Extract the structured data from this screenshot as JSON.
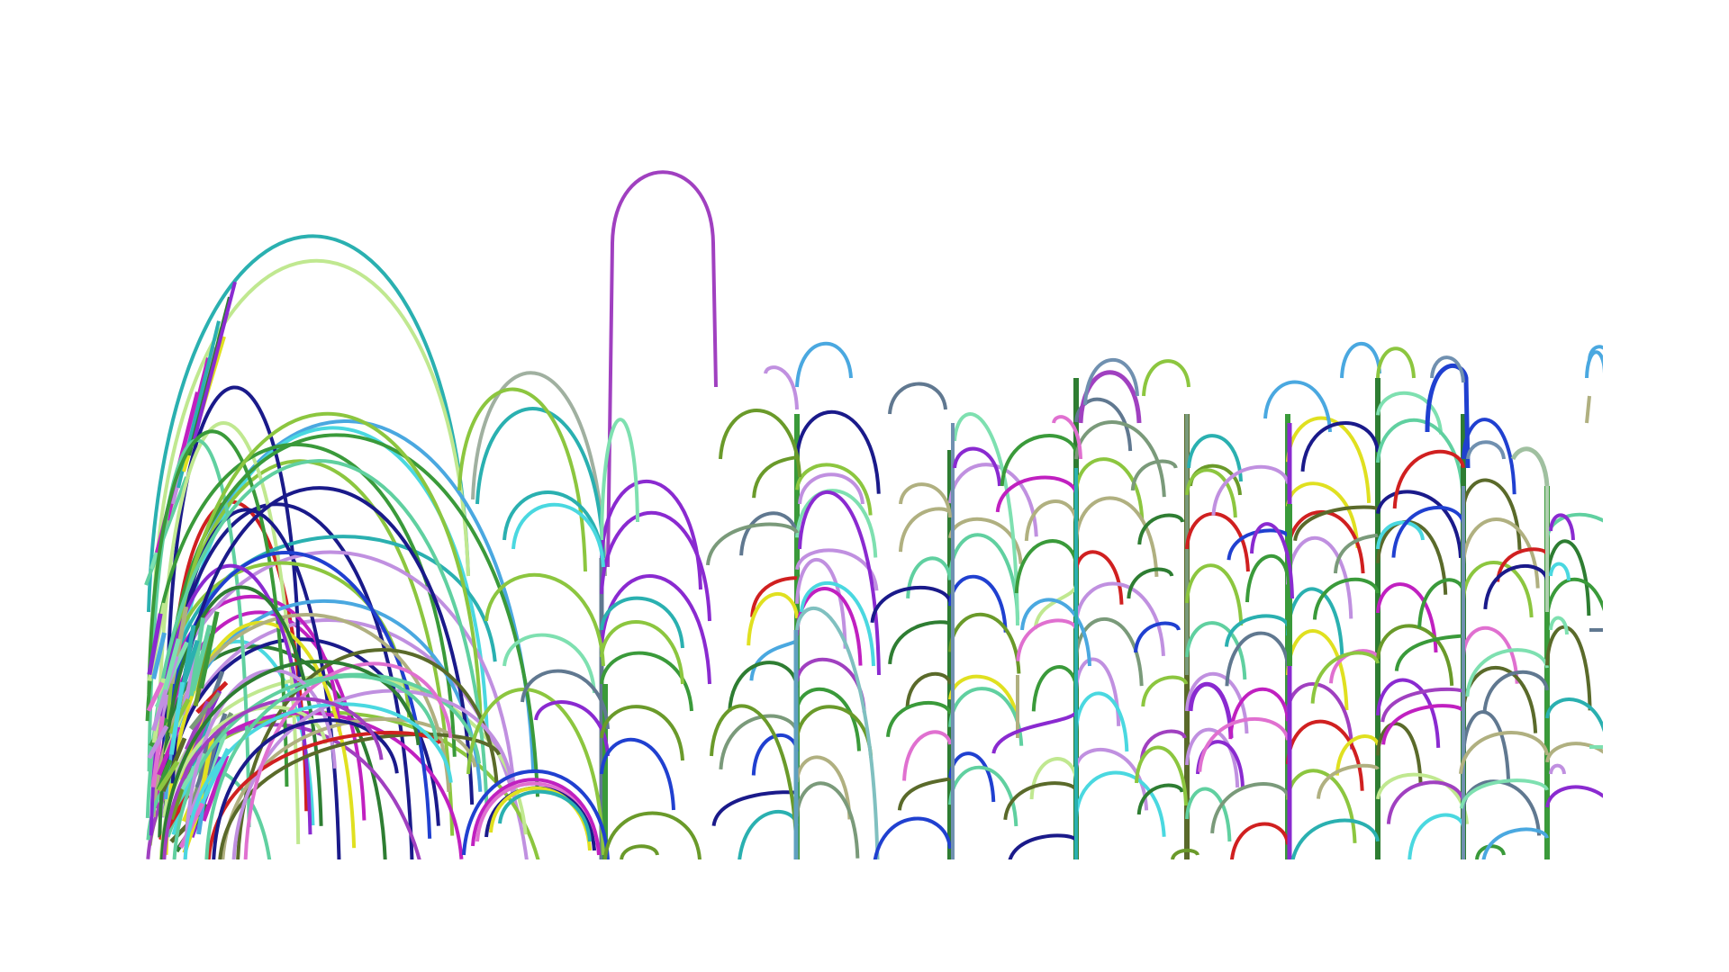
{
  "figure": {
    "background": "#ffffff",
    "description_visible_text": ""
  },
  "palette": {
    "green": "#3a9a3a",
    "dark_green": "#2e7d32",
    "olive": "#6a9a2a",
    "lime": "#8cc63f",
    "mint": "#7ee0b0",
    "teal": "#2ab0b0",
    "cyan": "#4ad8e0",
    "sky": "#4aa8e0",
    "blue": "#2040d0",
    "navy": "#1a1a8a",
    "purple": "#8a2ad0",
    "violet": "#a040c0",
    "magenta": "#c020c0",
    "pink": "#e070d0",
    "lavender": "#c090e0",
    "red": "#d02020",
    "yellow": "#e0e020",
    "khaki": "#b0b080",
    "slate": "#607890",
    "grey_green": "#7a9a7a",
    "pale_green": "#c0e890",
    "seafoam": "#60d0a0",
    "brown_olive": "#5a6a2a"
  }
}
